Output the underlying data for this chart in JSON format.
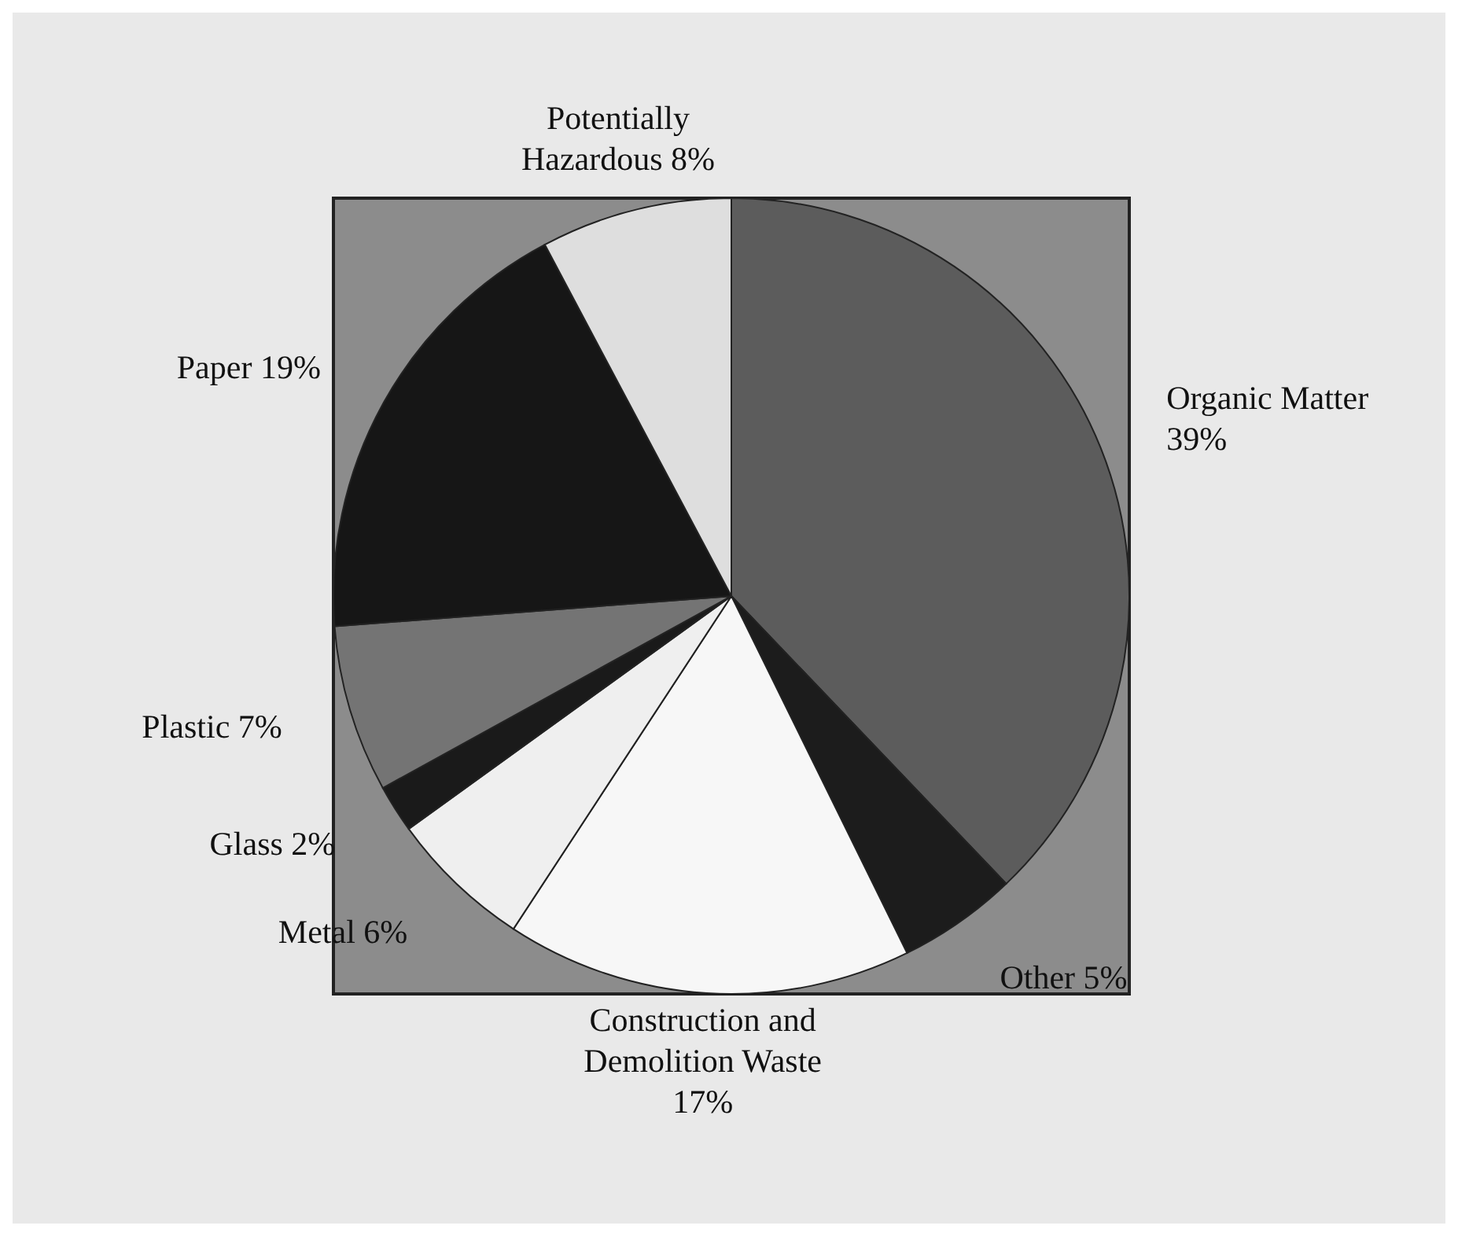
{
  "chart_data": {
    "type": "pie",
    "categories": [
      "Organic Matter",
      "Other",
      "Construction and Demolition Waste",
      "Metal",
      "Glass",
      "Plastic",
      "Paper",
      "Potentially Hazardous"
    ],
    "values": [
      39,
      5,
      17,
      6,
      2,
      7,
      19,
      8
    ],
    "value_labels": [
      "39%",
      "5%",
      "17%",
      "6%",
      "2%",
      "7%",
      "19%",
      "8%"
    ],
    "colors": [
      "#5c5c5c",
      "#1c1c1c",
      "#f7f7f7",
      "#efefef",
      "#1a1a1a",
      "#747474",
      "#161616",
      "#dedede"
    ]
  }
}
